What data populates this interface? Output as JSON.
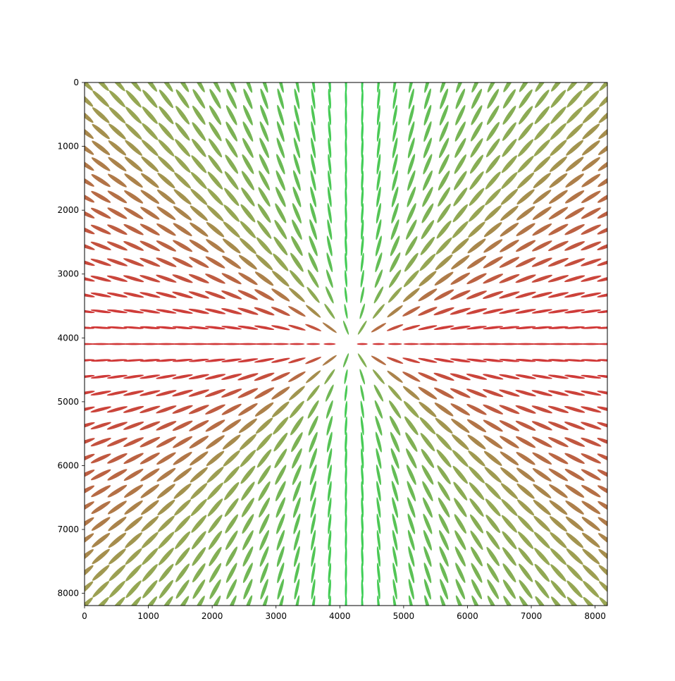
{
  "chart_data": {
    "type": "quiver",
    "title": "",
    "xlabel": "",
    "ylabel": "",
    "xlim": [
      0,
      8192
    ],
    "ylim": [
      8192,
      0
    ],
    "x_ticks": [
      0,
      1000,
      2000,
      3000,
      4000,
      5000,
      6000,
      7000,
      8000
    ],
    "y_ticks": [
      0,
      1000,
      2000,
      3000,
      4000,
      5000,
      6000,
      7000,
      8000
    ],
    "x_tick_labels": [
      "0",
      "1000",
      "2000",
      "3000",
      "4000",
      "5000",
      "6000",
      "7000",
      "8000"
    ],
    "y_tick_labels": [
      "0",
      "1000",
      "2000",
      "3000",
      "4000",
      "5000",
      "6000",
      "7000",
      "8000"
    ],
    "grid": false,
    "field": {
      "description_of_values": "glyph orientation field sampled on a regular grid; orientation follows direction from image center",
      "x_start": 0,
      "y_start": 0,
      "step": 256,
      "count_x": 33,
      "count_y": 33,
      "center": [
        4192,
        4096
      ],
      "color_vertical": "#22cc44",
      "color_diagonal": "#8f9a40",
      "color_horizontal": "#cc2222"
    }
  }
}
